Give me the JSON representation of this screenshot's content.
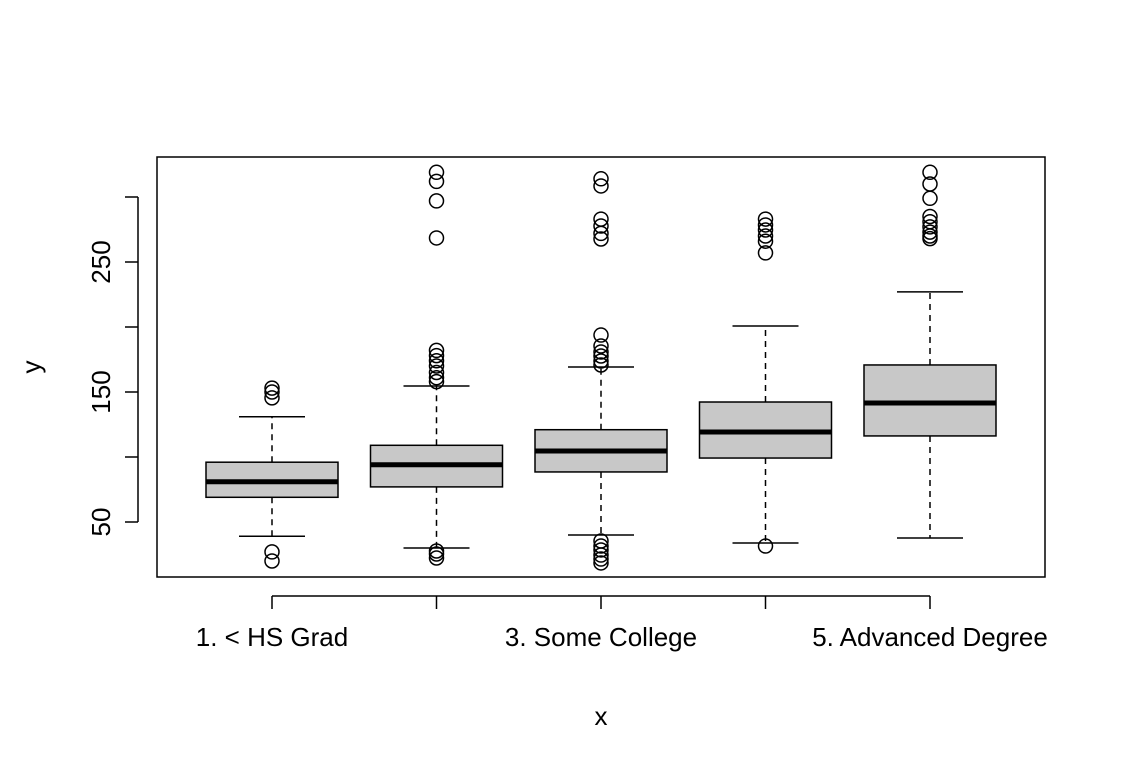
{
  "chart_data": {
    "type": "boxplot",
    "title": "",
    "xlabel": "x",
    "ylabel": "y",
    "ylim": [
      7.7,
      330.8
    ],
    "ytick_values": [
      50,
      100,
      150,
      200,
      250,
      300
    ],
    "ytick_labels": [
      "50",
      "",
      "150",
      "",
      "250",
      ""
    ],
    "categories": [
      "1. < HS Grad",
      "",
      "3. Some College",
      "",
      "5. Advanced Degree"
    ],
    "box_fill": "#c8c8c8",
    "groups": [
      {
        "lower_whisker": 39,
        "q1": 69,
        "median": 81,
        "q3": 96,
        "upper_whisker": 131,
        "outliers": [
          153,
          150,
          145.5,
          27,
          20
        ]
      },
      {
        "lower_whisker": 30,
        "q1": 77,
        "median": 94,
        "q3": 109,
        "upper_whisker": 154.6,
        "outliers": [
          319,
          312,
          297,
          268.5,
          182,
          178,
          174,
          170,
          165,
          161,
          158,
          27.7,
          25.4,
          22.3
        ]
      },
      {
        "lower_whisker": 40,
        "q1": 88.5,
        "median": 104.6,
        "q3": 121,
        "upper_whisker": 169.2,
        "outliers": [
          314,
          308.5,
          283,
          277.7,
          272,
          267.7,
          193.8,
          185.4,
          180.8,
          177.7,
          173.8,
          170.8,
          35.4,
          31.5,
          28.5,
          24.6,
          21.5,
          18.5
        ]
      },
      {
        "lower_whisker": 33.8,
        "q1": 99.2,
        "median": 119.2,
        "q3": 142.3,
        "upper_whisker": 200.8,
        "outliers": [
          283,
          278.5,
          274.6,
          270,
          266,
          257,
          31.5
        ]
      },
      {
        "lower_whisker": 37.7,
        "q1": 116.2,
        "median": 141.5,
        "q3": 170.8,
        "upper_whisker": 227,
        "outliers": [
          319,
          310,
          299,
          285,
          281,
          277,
          273,
          270,
          268
        ]
      }
    ]
  }
}
